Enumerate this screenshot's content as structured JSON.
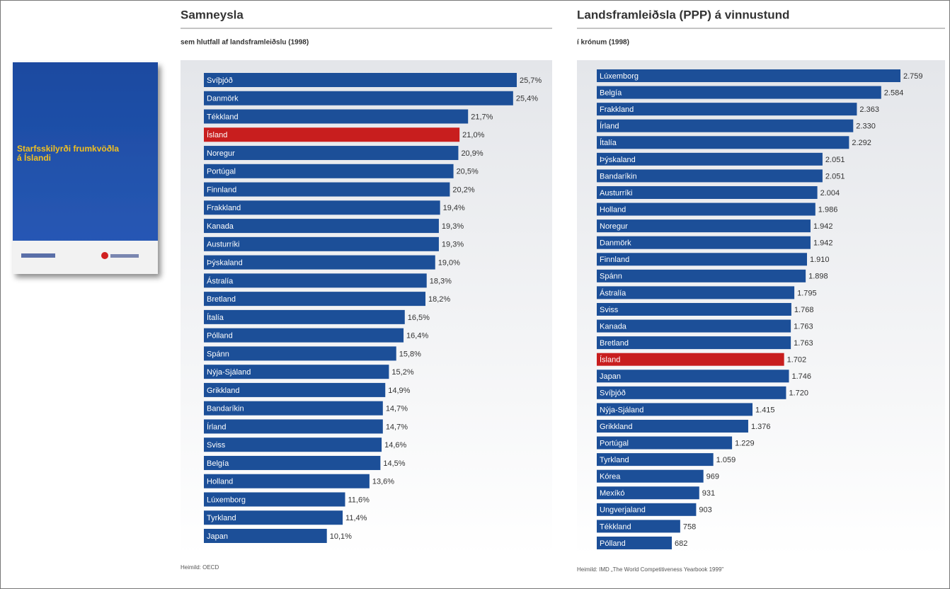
{
  "cover": {
    "title": "Starfsskilyrði frumkvöðla á Íslandi"
  },
  "chart_data": [
    {
      "type": "bar",
      "title": "Samneysla",
      "subtitle": "sem hlutfall af landsframleiðslu (1998)",
      "source": "Heimild: OECD",
      "categories": [
        "Svíþjóð",
        "Danmörk",
        "Tékkland",
        "Ísland",
        "Noregur",
        "Portúgal",
        "Finnland",
        "Frakkland",
        "Kanada",
        "Austurríki",
        "Þýskaland",
        "Ástralía",
        "Bretland",
        "Ítalía",
        "Pólland",
        "Spánn",
        "Nýja-Sjáland",
        "Grikkland",
        "Bandaríkin",
        "Írland",
        "Sviss",
        "Belgía",
        "Holland",
        "Lúxemborg",
        "Tyrkland",
        "Japan"
      ],
      "values": [
        25.7,
        25.4,
        21.7,
        21.0,
        20.9,
        20.5,
        20.2,
        19.4,
        19.3,
        19.3,
        19.0,
        18.3,
        18.2,
        16.5,
        16.4,
        15.8,
        15.2,
        14.9,
        14.7,
        14.7,
        14.6,
        14.5,
        13.6,
        11.6,
        11.4,
        10.1
      ],
      "value_labels": [
        "25,7%",
        "25,4%",
        "21,7%",
        "21,0%",
        "20,9%",
        "20,5%",
        "20,2%",
        "19,4%",
        "19,3%",
        "19,3%",
        "19,0%",
        "18,3%",
        "18,2%",
        "16,5%",
        "16,4%",
        "15,8%",
        "15,2%",
        "14,9%",
        "14,7%",
        "14,7%",
        "14,6%",
        "14,5%",
        "13,6%",
        "11,6%",
        "11,4%",
        "10,1%"
      ],
      "colors": [
        "#1c4f98",
        "#1c4f98",
        "#1c4f98",
        "#c81e1e",
        "#1c4f98",
        "#1c4f98",
        "#1c4f98",
        "#1c4f98",
        "#1c4f98",
        "#1c4f98",
        "#1c4f98",
        "#1c4f98",
        "#1c4f98",
        "#1c4f98",
        "#1c4f98",
        "#1c4f98",
        "#1c4f98",
        "#1c4f98",
        "#1c4f98",
        "#1c4f98",
        "#1c4f98",
        "#1c4f98",
        "#1c4f98",
        "#1c4f98",
        "#1c4f98",
        "#1c4f98"
      ]
    },
    {
      "type": "bar",
      "title": "Landsframleiðsla (PPP) á vinnustund",
      "subtitle": "í krónum (1998)",
      "source": "Heimild: IMD „The World Competitiveness Yearbook 1999\"",
      "categories": [
        "Lúxemborg",
        "Belgía",
        "Frakkland",
        "Írland",
        "Ítalía",
        "Þýskaland",
        "Bandaríkin",
        "Austurríki",
        "Holland",
        "Noregur",
        "Danmörk",
        "Finnland",
        "Spánn",
        "Ástralía",
        "Sviss",
        "Kanada",
        "Bretland",
        "Ísland",
        "Japan",
        "Svíþjóð",
        "Nýja-Sjáland",
        "Grikkland",
        "Portúgal",
        "Tyrkland",
        "Kórea",
        "Mexíkó",
        "Ungverjaland",
        "Tékkland",
        "Pólland"
      ],
      "values": [
        2759,
        2584,
        2363,
        2330,
        2292,
        2051,
        2051,
        2004,
        1986,
        1942,
        1942,
        1910,
        1898,
        1795,
        1768,
        1763,
        1763,
        1702,
        1746,
        1720,
        1415,
        1376,
        1229,
        1059,
        969,
        931,
        903,
        758,
        682
      ],
      "value_labels": [
        "2.759",
        "2.584",
        "2.363",
        "2.330",
        "2.292",
        "2.051",
        "2.051",
        "2.004",
        "1.986",
        "1.942",
        "1.942",
        "1.910",
        "1.898",
        "1.795",
        "1.768",
        "1.763",
        "1.763",
        "1.702",
        "1.746",
        "1.720",
        "1.415",
        "1.376",
        "1.229",
        "1.059",
        "969",
        "931",
        "903",
        "758",
        "682"
      ],
      "colors": [
        "#1c4f98",
        "#1c4f98",
        "#1c4f98",
        "#1c4f98",
        "#1c4f98",
        "#1c4f98",
        "#1c4f98",
        "#1c4f98",
        "#1c4f98",
        "#1c4f98",
        "#1c4f98",
        "#1c4f98",
        "#1c4f98",
        "#1c4f98",
        "#1c4f98",
        "#1c4f98",
        "#1c4f98",
        "#c81e1e",
        "#1c4f98",
        "#1c4f98",
        "#1c4f98",
        "#1c4f98",
        "#1c4f98",
        "#1c4f98",
        "#1c4f98",
        "#1c4f98",
        "#1c4f98",
        "#1c4f98",
        "#1c4f98"
      ]
    }
  ]
}
